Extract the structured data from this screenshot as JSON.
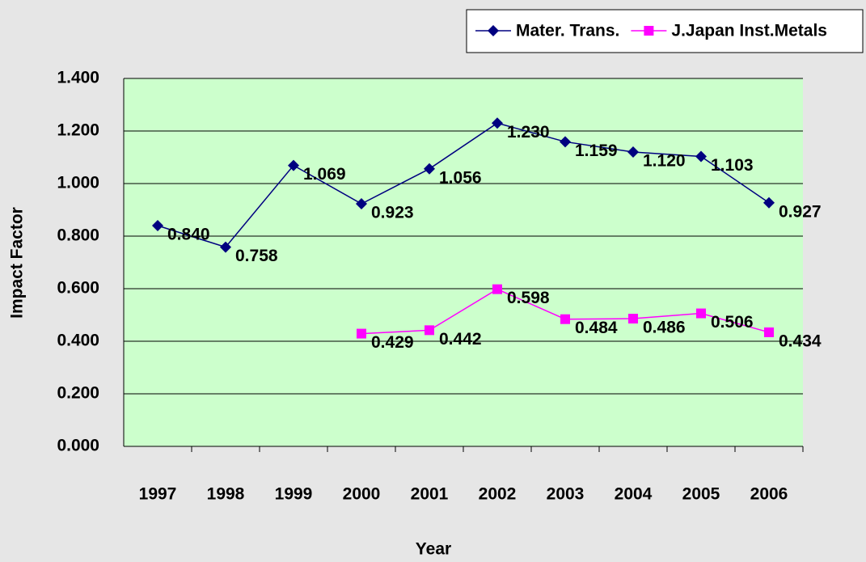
{
  "chart_data": {
    "type": "line",
    "x_label": "Year",
    "y_label": "Impact Factor",
    "categories": [
      "1997",
      "1998",
      "1999",
      "2000",
      "2001",
      "2002",
      "2003",
      "2004",
      "2005",
      "2006"
    ],
    "series": [
      {
        "name": "Mater. Trans.",
        "color": "#000080",
        "marker": "diamond",
        "values": [
          0.84,
          0.758,
          1.069,
          0.923,
          1.056,
          1.23,
          1.159,
          1.12,
          1.103,
          0.927
        ],
        "value_labels": [
          "0.840",
          "0.758",
          "1.069",
          "0.923",
          "1.056",
          "1.230",
          "1.159",
          "1.120",
          "1.103",
          "0.927"
        ]
      },
      {
        "name": "J.Japan Inst.Metals",
        "color": "#ff00ff",
        "marker": "square",
        "values": [
          null,
          null,
          null,
          0.429,
          0.442,
          0.598,
          0.484,
          0.486,
          0.506,
          0.434
        ],
        "value_labels": [
          null,
          null,
          null,
          "0.429",
          "0.442",
          "0.598",
          "0.484",
          "0.486",
          "0.506",
          "0.434"
        ]
      }
    ],
    "ylim": [
      0,
      1.4
    ],
    "yticks": [
      {
        "value": 0,
        "label": "0.000"
      },
      {
        "value": 0.2,
        "label": "0.200"
      },
      {
        "value": 0.4,
        "label": "0.400"
      },
      {
        "value": 0.6,
        "label": "0.600"
      },
      {
        "value": 0.8,
        "label": "0.800"
      },
      {
        "value": 1,
        "label": "1.000"
      },
      {
        "value": 1.2,
        "label": "1.200"
      },
      {
        "value": 1.4,
        "label": "1.400"
      }
    ],
    "grid": true,
    "legend": "top-right"
  }
}
